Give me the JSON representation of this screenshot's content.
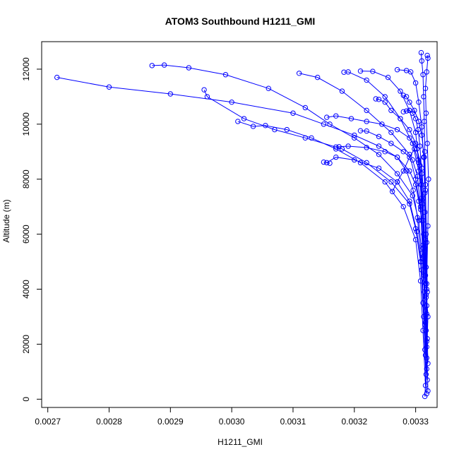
{
  "chart_data": {
    "type": "line",
    "title": "ATOM3 Southbound H1211_GMI",
    "xlabel": "H1211_GMI",
    "ylabel": "Altitude (m)",
    "xlim": [
      0.00269,
      0.003335
    ],
    "ylim": [
      -300,
      13000
    ],
    "x_ticks": [
      0.0027,
      0.0028,
      0.0029,
      0.003,
      0.0031,
      0.0032,
      0.0033
    ],
    "x_tick_labels": [
      "0.0027",
      "0.0028",
      "0.0029",
      "0.0030",
      "0.0031",
      "0.0032",
      "0.0033"
    ],
    "y_ticks": [
      0,
      2000,
      4000,
      6000,
      8000,
      10000,
      12000
    ],
    "y_tick_labels": [
      "0",
      "2000",
      "4000",
      "6000",
      "8000",
      "10000",
      "12000"
    ],
    "grid": false,
    "legend": "none",
    "series_color": "#0000ff",
    "marker": "open-circle",
    "series": [
      {
        "x": [
          0.003315,
          0.003318,
          0.00332,
          0.003316,
          0.003312,
          0.00331,
          0.003305,
          0.0033,
          0.00329,
          0.00327,
          0.00324,
          0.0032,
          0.00315,
          0.0031,
          0.003,
          0.0029,
          0.0028,
          0.002715
        ],
        "y": [
          100,
          1500,
          3000,
          4500,
          5500,
          6500,
          7200,
          7800,
          8300,
          8800,
          9200,
          9600,
          10000,
          10400,
          10800,
          11100,
          11350,
          11700
        ]
      },
      {
        "x": [
          0.003318,
          0.003315,
          0.003312,
          0.003308,
          0.0033,
          0.00329,
          0.00326,
          0.00322,
          0.00318,
          0.00312,
          0.00307,
          0.00302,
          0.00296,
          0.002955
        ],
        "y": [
          200,
          1800,
          3500,
          5000,
          6200,
          7100,
          7900,
          8600,
          9100,
          9500,
          9800,
          10200,
          11000,
          11250
        ]
      },
      {
        "x": [
          0.00332,
          0.003318,
          0.003314,
          0.00331,
          0.003305,
          0.003295,
          0.00327,
          0.00324,
          0.0032,
          0.00316,
          0.00312,
          0.00306,
          0.00299,
          0.00293,
          0.00289,
          0.00287
        ],
        "y": [
          300,
          2100,
          3900,
          5300,
          6500,
          7400,
          8200,
          8900,
          9500,
          10000,
          10600,
          11300,
          11800,
          12050,
          12150,
          12130
        ]
      },
      {
        "x": [
          0.003316,
          0.003312,
          0.003308,
          0.0033,
          0.00328,
          0.00325,
          0.00321,
          0.00317,
          0.00313,
          0.00309,
          0.003055,
          0.003035,
          0.00301
        ],
        "y": [
          500,
          2500,
          4300,
          5800,
          7000,
          7900,
          8600,
          9100,
          9500,
          9800,
          9950,
          9920,
          10100
        ]
      },
      {
        "x": [
          0.003319,
          0.003315,
          0.00331,
          0.003302,
          0.00329,
          0.00327,
          0.00324,
          0.0032,
          0.00317,
          0.003155,
          0.00315,
          0.00316
        ],
        "y": [
          700,
          2700,
          4700,
          6100,
          7200,
          7900,
          8400,
          8700,
          8800,
          8600,
          8620,
          8580
        ]
      },
      {
        "x": [
          0.003317,
          0.003313,
          0.003309,
          0.003303,
          0.003296,
          0.003285,
          0.00327,
          0.00325,
          0.00322,
          0.00319,
          0.003175,
          0.00317
        ],
        "y": [
          900,
          3000,
          5000,
          6600,
          7600,
          8300,
          8800,
          9000,
          9150,
          9200,
          9180,
          9170
        ]
      },
      {
        "x": [
          0.003318,
          0.003316,
          0.003313,
          0.003308,
          0.0033,
          0.00329,
          0.00326,
          0.00322,
          0.00318,
          0.00314,
          0.00311
        ],
        "y": [
          1100,
          3200,
          5200,
          6900,
          8000,
          8900,
          9700,
          10500,
          11200,
          11700,
          11850
        ]
      },
      {
        "x": [
          0.00332,
          0.003318,
          0.003315,
          0.003311,
          0.003305,
          0.003295,
          0.003275,
          0.00325,
          0.00322,
          0.00319,
          0.003183
        ],
        "y": [
          1300,
          3400,
          5400,
          7100,
          8300,
          9300,
          10200,
          11000,
          11600,
          11900,
          11890
        ]
      },
      {
        "x": [
          0.003316,
          0.003315,
          0.003312,
          0.003309,
          0.003305,
          0.0033,
          0.00329,
          0.003275,
          0.003255,
          0.00323,
          0.00321
        ],
        "y": [
          1600,
          3600,
          5600,
          7300,
          8600,
          9700,
          10500,
          11200,
          11700,
          11920,
          11930
        ]
      },
      {
        "x": [
          0.003318,
          0.003317,
          0.003316,
          0.003315,
          0.003313,
          0.00331,
          0.003305,
          0.0033,
          0.003292,
          0.003285,
          0.00327
        ],
        "y": [
          1900,
          3800,
          5800,
          7500,
          8800,
          9900,
          10800,
          11500,
          11900,
          11950,
          11980
        ]
      },
      {
        "x": [
          0.003319,
          0.003318,
          0.003317,
          0.003316,
          0.003315,
          0.003314,
          0.003313,
          0.003312,
          0.00331,
          0.003309
        ],
        "y": [
          2200,
          4000,
          6000,
          7800,
          9000,
          10100,
          11000,
          11800,
          12300,
          12600
        ]
      },
      {
        "x": [
          0.003317,
          0.003318,
          0.00332,
          0.003321,
          0.003319,
          0.003317,
          0.003316,
          0.003318,
          0.00332,
          0.003319
        ],
        "y": [
          2500,
          4200,
          6300,
          8000,
          9300,
          10400,
          11300,
          11900,
          12400,
          12500
        ]
      },
      {
        "x": [
          0.003316,
          0.003314,
          0.003312,
          0.00331,
          0.003307,
          0.003304,
          0.0033,
          0.003295,
          0.00329,
          0.003285,
          0.00328
        ],
        "y": [
          2800,
          4500,
          6500,
          8200,
          9200,
          9800,
          10200,
          10400,
          10500,
          10480,
          10450
        ]
      },
      {
        "x": [
          0.003318,
          0.003317,
          0.003315,
          0.00331,
          0.003302,
          0.00329,
          0.00327,
          0.003245,
          0.00322,
          0.003195,
          0.00317,
          0.003155
        ],
        "y": [
          3100,
          4800,
          6800,
          8400,
          9100,
          9500,
          9800,
          10000,
          10100,
          10200,
          10300,
          10250
        ]
      },
      {
        "x": [
          0.003315,
          0.003312,
          0.003308,
          0.003303,
          0.003295,
          0.00328,
          0.00326,
          0.00324,
          0.00322,
          0.00321
        ],
        "y": [
          3400,
          5100,
          7000,
          8100,
          8700,
          9000,
          9300,
          9550,
          9750,
          9760
        ]
      },
      {
        "x": [
          0.003317,
          0.003315,
          0.003312,
          0.003307,
          0.0033,
          0.00329,
          0.003275,
          0.00326,
          0.00325,
          0.00324,
          0.003235
        ],
        "y": [
          3700,
          5500,
          7300,
          8500,
          9300,
          9800,
          10200,
          10500,
          10800,
          10900,
          10920
        ]
      },
      {
        "x": [
          0.003319,
          0.003318,
          0.003316,
          0.003314,
          0.00331,
          0.003305,
          0.003298,
          0.00329,
          0.003285,
          0.00328
        ],
        "y": [
          3900,
          5700,
          7600,
          8800,
          9600,
          10100,
          10500,
          10800,
          11000,
          11050
        ]
      },
      {
        "x": [
          0.003316,
          0.003313,
          0.003309,
          0.003304,
          0.003298,
          0.00329,
          0.00328,
          0.00327,
          0.003262
        ],
        "y": [
          4200,
          6000,
          7800,
          8700,
          9100,
          8800,
          8300,
          7900,
          7550
        ]
      }
    ]
  }
}
